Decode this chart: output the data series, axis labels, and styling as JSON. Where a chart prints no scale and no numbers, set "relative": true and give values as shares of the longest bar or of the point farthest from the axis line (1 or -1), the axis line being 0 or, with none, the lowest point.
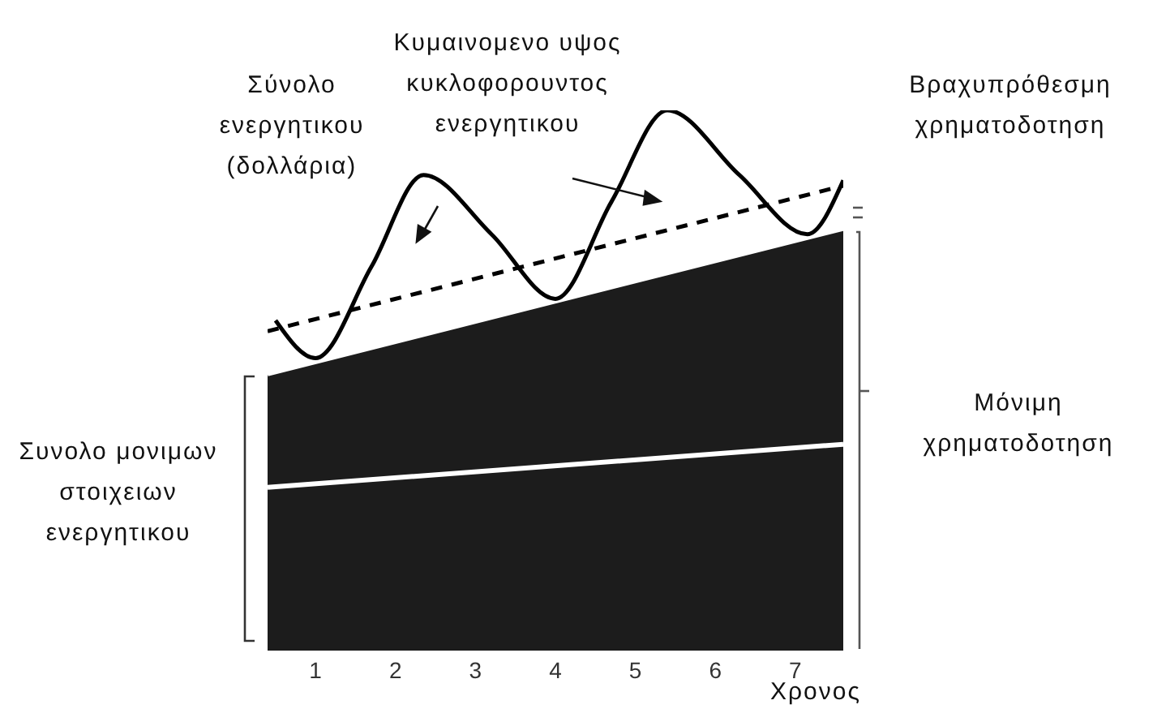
{
  "chart_data": {
    "type": "line",
    "relative": true,
    "xlabel": "Χρονος",
    "ylabel": "Σύνολο ενεργητικου (δολλάρια)",
    "annotations": [
      "Κυμαινομενο υψος κυκλοφορουντος ενεργητικου",
      "Βραχυπρόθεσμη χρηματοδοτηση",
      "Μόνιμη χρηματοδοτηση",
      "Συνολο μονιμων στοιχειων ενεργητικου"
    ],
    "xlim": [
      0.4,
      7.6
    ],
    "xticks": [
      1,
      2,
      3,
      4,
      5,
      6,
      7
    ],
    "marker": "none",
    "series": [
      {
        "type": "area",
        "color": "#1c1c1c",
        "x": [
          0.4,
          7.6
        ],
        "values": [
          0.51,
          0.78
        ]
      },
      {
        "color": "#ffffff",
        "x": [
          0.4,
          7.6
        ],
        "values": [
          0.3,
          0.38
        ]
      },
      {
        "color": "#000000",
        "line_style": "dashed",
        "x": [
          0.4,
          7.6
        ],
        "values": [
          0.59,
          0.86
        ]
      },
      {
        "color": "#000000",
        "x": [
          0.5,
          1.0,
          1.7,
          2.35,
          3.2,
          4.0,
          4.7,
          5.4,
          6.3,
          7.15,
          7.6
        ],
        "values": [
          0.61,
          0.54,
          0.71,
          0.88,
          0.77,
          0.65,
          0.83,
          1.0,
          0.88,
          0.77,
          0.87
        ]
      }
    ]
  }
}
